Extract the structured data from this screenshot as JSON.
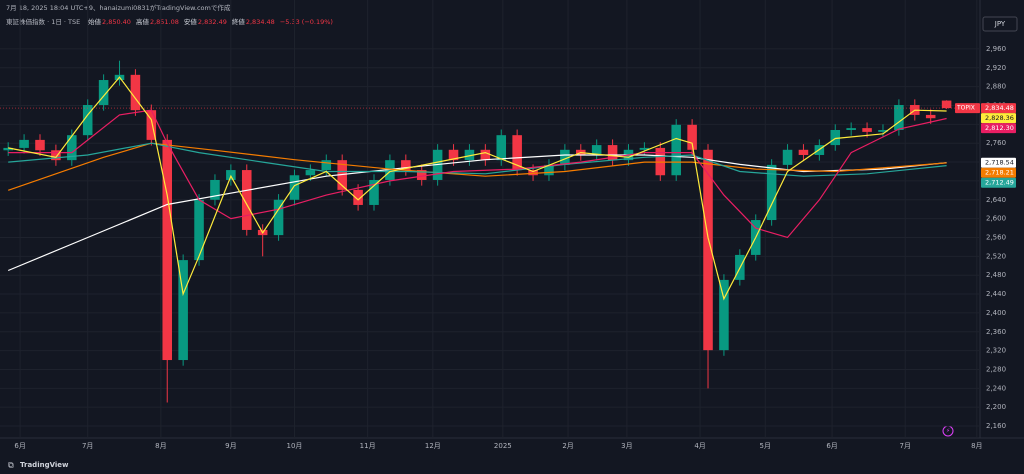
{
  "header": {
    "caption": "7月 18, 2025 18:04 UTC+9、hanaizumi0831がTradingView.comで作成",
    "symbol": "東証株価指数 · 1日 · TSE",
    "ohlc": [
      {
        "label": "始値",
        "value": "2,850.40"
      },
      {
        "label": "高値",
        "value": "2,851.08"
      },
      {
        "label": "安値",
        "value": "2,832.49"
      },
      {
        "label": "終値",
        "value": "2,834.48"
      }
    ],
    "change": "−5.33 (−0.19%)",
    "currency": "JPY"
  },
  "footer": {
    "brand": "TradingView"
  },
  "chart_data": {
    "type": "candlestick",
    "up_color": "#089981",
    "down_color": "#f23645",
    "x": [
      0,
      1,
      2,
      3,
      4,
      5,
      6,
      7,
      8,
      9,
      10,
      11,
      12,
      13,
      14,
      15,
      16,
      17,
      18,
      19,
      20,
      21,
      22,
      23,
      24,
      25,
      26,
      27,
      28,
      29,
      30,
      31,
      32,
      33,
      34,
      35,
      36,
      37,
      38,
      39,
      40,
      41,
      42,
      43,
      44,
      45,
      46,
      47,
      48,
      49,
      50,
      51,
      52,
      53,
      54,
      55,
      56,
      57,
      58,
      59
    ],
    "open": [
      2745,
      2750,
      2767,
      2745,
      2724,
      2777,
      2841,
      2894,
      2905,
      2830,
      2767,
      2300,
      2512,
      2640,
      2682,
      2703,
      2576,
      2565,
      2640,
      2692,
      2703,
      2724,
      2661,
      2629,
      2682,
      2724,
      2703,
      2682,
      2746,
      2724,
      2746,
      2724,
      2777,
      2703,
      2692,
      2714,
      2746,
      2735,
      2756,
      2724,
      2746,
      2750,
      2692,
      2799,
      2746,
      2321,
      2470,
      2523,
      2597,
      2714,
      2746,
      2735,
      2756,
      2788,
      2792,
      2784,
      2788,
      2841,
      2820,
      2850.4
    ],
    "high": [
      2762,
      2779,
      2779,
      2757,
      2789,
      2853,
      2906,
      2935,
      2917,
      2842,
      2779,
      2524,
      2652,
      2694,
      2715,
      2715,
      2588,
      2652,
      2704,
      2715,
      2736,
      2736,
      2673,
      2694,
      2736,
      2736,
      2715,
      2758,
      2758,
      2758,
      2758,
      2789,
      2789,
      2715,
      2726,
      2758,
      2758,
      2768,
      2768,
      2758,
      2762,
      2762,
      2811,
      2811,
      2758,
      2482,
      2535,
      2609,
      2726,
      2758,
      2758,
      2768,
      2800,
      2804,
      2804,
      2800,
      2853,
      2853,
      2832,
      2851.08
    ],
    "low": [
      2733,
      2738,
      2733,
      2712,
      2712,
      2765,
      2829,
      2882,
      2818,
      2755,
      2210,
      2288,
      2500,
      2628,
      2670,
      2564,
      2520,
      2553,
      2628,
      2680,
      2691,
      2649,
      2617,
      2617,
      2670,
      2691,
      2670,
      2670,
      2712,
      2712,
      2712,
      2712,
      2691,
      2680,
      2680,
      2702,
      2723,
      2723,
      2712,
      2712,
      2734,
      2680,
      2680,
      2734,
      2240,
      2309,
      2458,
      2511,
      2585,
      2702,
      2723,
      2723,
      2744,
      2776,
      2772,
      2772,
      2776,
      2808,
      2801,
      2832.49
    ],
    "close": [
      2750,
      2767,
      2745,
      2724,
      2777,
      2841,
      2894,
      2905,
      2830,
      2767,
      2300,
      2512,
      2640,
      2682,
      2703,
      2576,
      2565,
      2640,
      2692,
      2703,
      2724,
      2661,
      2629,
      2682,
      2724,
      2703,
      2682,
      2746,
      2724,
      2746,
      2724,
      2777,
      2703,
      2692,
      2714,
      2746,
      2735,
      2756,
      2724,
      2746,
      2750,
      2692,
      2799,
      2746,
      2321,
      2470,
      2523,
      2597,
      2714,
      2746,
      2735,
      2756,
      2788,
      2792,
      2784,
      2788,
      2841,
      2820,
      2813,
      2834.48
    ],
    "lines": [
      {
        "color": "#ffffff",
        "x": [
          0,
          5,
          10,
          15,
          20,
          25,
          30,
          35,
          40,
          43,
          46,
          50,
          55,
          59
        ],
        "values": [
          2490,
          2560,
          2630,
          2660,
          2690,
          2708,
          2725,
          2735,
          2735,
          2730,
          2715,
          2700,
          2705,
          2718.54
        ]
      },
      {
        "color": "#f57c00",
        "x": [
          0,
          6,
          9,
          13,
          18,
          24,
          30,
          35,
          40,
          43,
          47,
          52,
          59
        ],
        "values": [
          2660,
          2730,
          2760,
          2745,
          2725,
          2705,
          2690,
          2700,
          2720,
          2720,
          2705,
          2700,
          2718.21
        ]
      },
      {
        "color": "#26a69a",
        "x": [
          0,
          5,
          9,
          12,
          16,
          20,
          25,
          30,
          35,
          40,
          43,
          46,
          50,
          54,
          59
        ],
        "values": [
          2720,
          2735,
          2760,
          2740,
          2720,
          2700,
          2700,
          2695,
          2715,
          2730,
          2735,
          2700,
          2690,
          2695,
          2712.49
        ]
      },
      {
        "color": "#e91e63",
        "x": [
          0,
          4,
          7,
          9,
          10,
          12,
          14,
          17,
          20,
          24,
          28,
          32,
          36,
          40,
          43,
          45,
          47,
          49,
          51,
          53,
          56,
          59
        ],
        "values": [
          2740,
          2740,
          2820,
          2830,
          2760,
          2640,
          2600,
          2620,
          2650,
          2680,
          2700,
          2705,
          2720,
          2740,
          2740,
          2650,
          2580,
          2560,
          2640,
          2740,
          2790,
          2812.3
        ]
      },
      {
        "color": "#ffeb3b",
        "x": [
          0,
          3,
          5,
          7,
          9,
          10,
          11,
          12,
          14,
          16,
          18,
          20,
          22,
          24,
          27,
          30,
          33,
          36,
          39,
          42,
          43,
          44,
          45,
          47,
          49,
          52,
          55,
          57,
          59
        ],
        "values": [
          2750,
          2730,
          2820,
          2900,
          2810,
          2650,
          2440,
          2520,
          2690,
          2570,
          2670,
          2700,
          2640,
          2700,
          2720,
          2740,
          2700,
          2740,
          2730,
          2770,
          2760,
          2560,
          2430,
          2560,
          2700,
          2770,
          2780,
          2830,
          2828.36
        ]
      }
    ],
    "price_tags": [
      {
        "name": "TOPIX",
        "value": 2834.48,
        "label": "2,834.48",
        "color": "#f23645"
      },
      {
        "value": 2828.36,
        "label": "2,828.36",
        "color": "#ffeb3b"
      },
      {
        "value": 2812.3,
        "label": "2,812.30",
        "color": "#e91e63"
      },
      {
        "value": 2718.54,
        "label": "2,718.54",
        "color": "#ffffff"
      },
      {
        "value": 2718.21,
        "label": "2,718.21",
        "color": "#f57c00"
      },
      {
        "value": 2712.49,
        "label": "2,712.49",
        "color": "#26a69a"
      }
    ],
    "xlim": [
      -0.2,
      61.1
    ],
    "xticks": [
      {
        "value": 0.75,
        "label": "6月"
      },
      {
        "value": 5,
        "label": "7月"
      },
      {
        "value": 9.6,
        "label": "8月"
      },
      {
        "value": 14,
        "label": "9月"
      },
      {
        "value": 18,
        "label": "10月"
      },
      {
        "value": 22.6,
        "label": "11月"
      },
      {
        "value": 26.7,
        "label": "12月"
      },
      {
        "value": 31.1,
        "label": "2025"
      },
      {
        "value": 35.2,
        "label": "2月"
      },
      {
        "value": 38.9,
        "label": "3月"
      },
      {
        "value": 43.5,
        "label": "4月"
      },
      {
        "value": 47.6,
        "label": "5月"
      },
      {
        "value": 51.8,
        "label": "6月"
      },
      {
        "value": 56.4,
        "label": "7月"
      },
      {
        "value": 60.9,
        "label": "8月"
      }
    ],
    "ylim": [
      2141,
      2998
    ],
    "yticks": [
      {
        "value": 2160,
        "label": "2,160"
      },
      {
        "value": 2200,
        "label": "2,200"
      },
      {
        "value": 2240,
        "label": "2,240"
      },
      {
        "value": 2280,
        "label": "2,280"
      },
      {
        "value": 2320,
        "label": "2,320"
      },
      {
        "value": 2360,
        "label": "2,360"
      },
      {
        "value": 2400,
        "label": "2,400"
      },
      {
        "value": 2440,
        "label": "2,440"
      },
      {
        "value": 2480,
        "label": "2,480"
      },
      {
        "value": 2520,
        "label": "2,520"
      },
      {
        "value": 2560,
        "label": "2,560"
      },
      {
        "value": 2600,
        "label": "2,600"
      },
      {
        "value": 2640,
        "label": "2,640"
      },
      {
        "value": 2680,
        "label": "2,680"
      },
      {
        "value": 2720,
        "label": "2,720"
      },
      {
        "value": 2760,
        "label": "2,760"
      },
      {
        "value": 2800,
        "label": "2,800"
      },
      {
        "value": 2840,
        "label": "2,840"
      },
      {
        "value": 2880,
        "label": "2,880"
      },
      {
        "value": 2920,
        "label": "2,920"
      },
      {
        "value": 2960,
        "label": "2,960"
      }
    ],
    "grid": true
  }
}
